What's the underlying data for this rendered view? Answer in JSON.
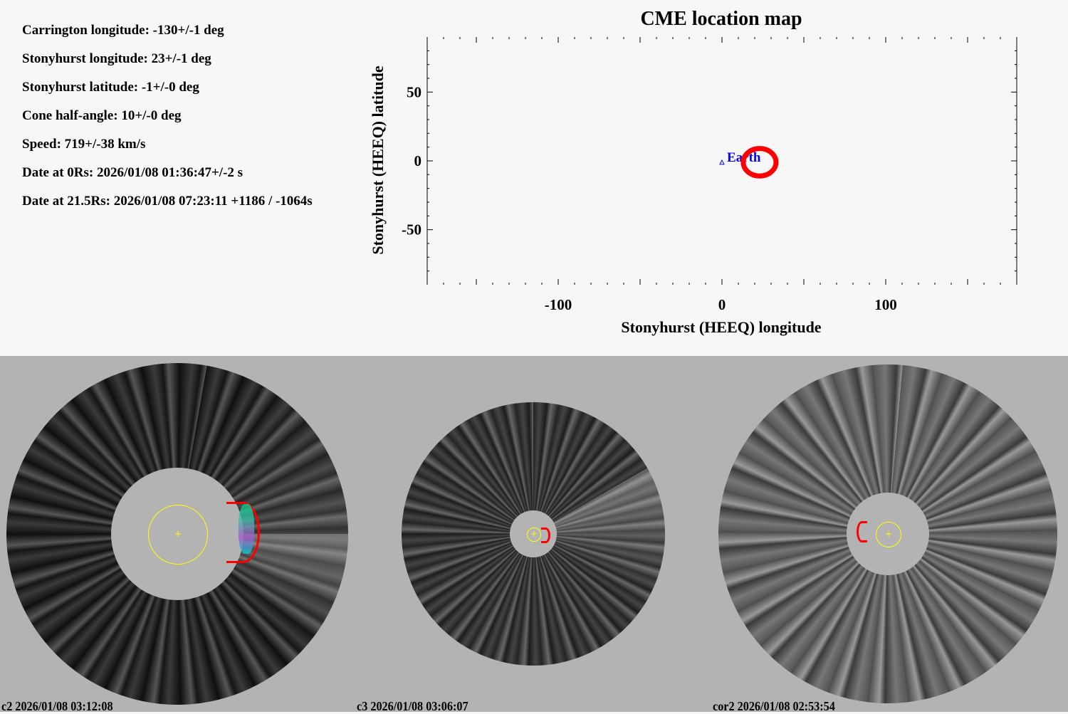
{
  "info": [
    "Carrington longitude: -130+/-1 deg",
    "Stonyhurst longitude: 23+/-1 deg",
    "Stonyhurst latitude: -1+/-0 deg",
    "Cone half-angle: 10+/-0 deg",
    "Speed: 719+/-38 km/s",
    "Date at 0Rs: 2026/01/08 01:36:47+/-2 s",
    "Date at 21.5Rs: 2026/01/08 07:23:11 +1186 / -1064s"
  ],
  "chart_data": {
    "type": "scatter",
    "title": "CME location map",
    "xlabel": "Stonyhurst (HEEQ) longitude",
    "ylabel": "Stonyhurst (HEEQ) latitude",
    "xlim": [
      -180,
      180
    ],
    "ylim": [
      -90,
      90
    ],
    "xticks": [
      -100,
      0,
      100
    ],
    "yticks": [
      -50,
      0,
      50
    ],
    "points": [
      {
        "name": "Earth",
        "lon": 0,
        "lat": -1,
        "color": "#0000ff",
        "marker": "triangle"
      },
      {
        "name": "CME",
        "lon": 23,
        "lat": -1,
        "color": "#ff0000",
        "marker": "circle",
        "half_angle": 10
      }
    ]
  },
  "images": [
    {
      "caption": "c2 2026/01/08 03:12:08"
    },
    {
      "caption": "c3 2026/01/08 03:06:07"
    },
    {
      "caption": "cor2 2026/01/08 02:53:54"
    }
  ]
}
